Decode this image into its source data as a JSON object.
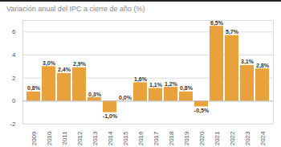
{
  "chart_data": {
    "type": "bar",
    "title": "Variación anual del IPC a cierre de año (%)",
    "categories": [
      "2009",
      "2010",
      "2011",
      "2012",
      "2013",
      "2014",
      "2015",
      "2016",
      "2017",
      "2018",
      "2019",
      "2020",
      "2021",
      "2022",
      "2023",
      "2024"
    ],
    "values": [
      0.8,
      3.0,
      2.4,
      2.9,
      0.3,
      -1.0,
      0.0,
      1.6,
      1.1,
      1.2,
      0.8,
      -0.5,
      6.5,
      5.7,
      3.1,
      2.8
    ],
    "value_labels": [
      "0,8%",
      "3,0%",
      "2,4%",
      "2,9%",
      "0,3%",
      "-1,0%",
      "0,0%",
      "1,6%",
      "1,1%",
      "1,2%",
      "0,8%",
      "-0,5%",
      "6,5%",
      "5,7%",
      "3,1%",
      "2,8%"
    ],
    "color": "#e9a23b",
    "ylim": [
      -2,
      7
    ],
    "yticks": [
      -2,
      0,
      2,
      4,
      6
    ],
    "grid": true,
    "data_labels": true
  }
}
